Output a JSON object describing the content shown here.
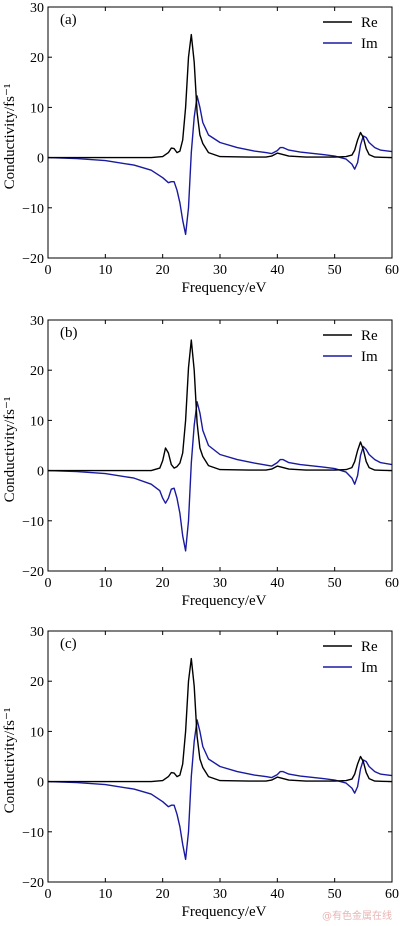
{
  "chart_data": [
    {
      "type": "line",
      "panel_label": "(a)",
      "xlabel": "Frequency/eV",
      "ylabel": "Conductivity/fs⁻¹",
      "xlim": [
        0,
        60
      ],
      "ylim": [
        -20,
        30
      ],
      "xticks": [
        0,
        10,
        20,
        30,
        40,
        50,
        60
      ],
      "yticks": [
        -20,
        -10,
        0,
        10,
        20,
        30
      ],
      "legend_position": "top-right",
      "series": [
        {
          "name": "Re",
          "color": "#000000",
          "x": [
            0,
            10,
            18,
            20,
            21,
            21.5,
            22,
            22.5,
            23,
            23.5,
            24,
            24.5,
            25,
            25.5,
            26,
            26.5,
            27,
            28,
            30,
            35,
            38,
            39,
            40,
            41,
            42,
            45,
            50,
            52,
            53,
            53.5,
            54,
            54.5,
            55,
            55.5,
            56,
            57,
            60
          ],
          "y": [
            0,
            0,
            0,
            0.2,
            1.0,
            1.9,
            1.8,
            1.0,
            1.3,
            3.5,
            10.0,
            20.0,
            24.5,
            19.0,
            9.0,
            4.5,
            2.8,
            1.0,
            0.2,
            0.1,
            0.1,
            0.3,
            0.9,
            0.6,
            0.3,
            0.1,
            0.1,
            0.2,
            0.5,
            1.5,
            3.5,
            5.0,
            4.0,
            1.8,
            0.6,
            0.1,
            0
          ]
        },
        {
          "name": "Im",
          "color": "#1a1aa0",
          "x": [
            0,
            5,
            10,
            15,
            18,
            20,
            21,
            21.5,
            22,
            22.5,
            23,
            23.5,
            24,
            24.5,
            25,
            25.5,
            26,
            26.5,
            27,
            28,
            30,
            33,
            36,
            38,
            39,
            40,
            40.5,
            41,
            42,
            44,
            48,
            50,
            52,
            53,
            53.5,
            54,
            54.5,
            55,
            55.5,
            56,
            57,
            58,
            60
          ],
          "y": [
            0,
            -0.2,
            -0.6,
            -1.5,
            -2.5,
            -4.0,
            -5.0,
            -4.8,
            -4.8,
            -6.5,
            -9.0,
            -12.5,
            -15.3,
            -10.0,
            1.0,
            8.0,
            12.3,
            10.0,
            7.0,
            4.5,
            3.0,
            2.0,
            1.3,
            1.0,
            0.8,
            1.4,
            2.0,
            2.0,
            1.5,
            1.1,
            0.6,
            0.3,
            -0.3,
            -1.3,
            -2.3,
            -1.0,
            2.5,
            4.3,
            4.0,
            3.0,
            2.0,
            1.5,
            1.2
          ]
        }
      ]
    },
    {
      "type": "line",
      "panel_label": "(b)",
      "xlabel": "Frequency/eV",
      "ylabel": "Conductivity/fs⁻¹",
      "xlim": [
        0,
        60
      ],
      "ylim": [
        -20,
        30
      ],
      "xticks": [
        0,
        10,
        20,
        30,
        40,
        50,
        60
      ],
      "yticks": [
        -20,
        -10,
        0,
        10,
        20,
        30
      ],
      "legend_position": "top-right",
      "series": [
        {
          "name": "Re",
          "color": "#000000",
          "x": [
            0,
            10,
            18,
            19.5,
            20,
            20.5,
            21,
            21.5,
            22,
            22.5,
            23,
            23.5,
            24,
            24.5,
            25,
            25.5,
            26,
            26.5,
            27,
            28,
            30,
            35,
            38,
            39,
            40,
            41,
            42,
            45,
            50,
            52,
            53,
            53.5,
            54,
            54.5,
            55,
            55.5,
            56,
            57,
            60
          ],
          "y": [
            0,
            0,
            0,
            0.5,
            2.0,
            4.5,
            3.5,
            1.2,
            0.5,
            0.8,
            1.5,
            3.5,
            10.0,
            20.5,
            26.0,
            20.0,
            9.5,
            4.5,
            2.8,
            1.0,
            0.2,
            0.1,
            0.1,
            0.3,
            0.9,
            0.6,
            0.3,
            0.1,
            0.1,
            0.2,
            0.6,
            1.8,
            4.0,
            5.7,
            4.2,
            1.8,
            0.6,
            0.1,
            0
          ]
        },
        {
          "name": "Im",
          "color": "#1a1aa0",
          "x": [
            0,
            5,
            10,
            15,
            18,
            19.5,
            20,
            20.5,
            21,
            21.5,
            22,
            22.5,
            23,
            23.5,
            24,
            24.5,
            25,
            25.5,
            26,
            26.5,
            27,
            28,
            30,
            33,
            36,
            38,
            39,
            40,
            40.5,
            41,
            42,
            44,
            48,
            50,
            52,
            53,
            53.5,
            54,
            54.5,
            55,
            55.5,
            56,
            57,
            58,
            60
          ],
          "y": [
            0,
            -0.2,
            -0.6,
            -1.5,
            -2.7,
            -4.0,
            -5.5,
            -6.5,
            -5.5,
            -3.7,
            -3.5,
            -5.5,
            -8.5,
            -13.0,
            -16.0,
            -10.0,
            1.5,
            9.0,
            13.7,
            11.5,
            8.0,
            5.0,
            3.2,
            2.2,
            1.5,
            1.1,
            0.9,
            1.6,
            2.2,
            2.2,
            1.6,
            1.2,
            0.7,
            0.4,
            -0.3,
            -1.5,
            -2.7,
            -1.0,
            3.0,
            4.8,
            4.2,
            3.2,
            2.2,
            1.6,
            1.2
          ]
        }
      ]
    },
    {
      "type": "line",
      "panel_label": "(c)",
      "xlabel": "Frequency/eV",
      "ylabel": "Conductivity/fs⁻¹",
      "xlim": [
        0,
        60
      ],
      "ylim": [
        -20,
        30
      ],
      "xticks": [
        0,
        10,
        20,
        30,
        40,
        50,
        60
      ],
      "yticks": [
        -20,
        -10,
        0,
        10,
        20,
        30
      ],
      "legend_position": "top-right",
      "series": [
        {
          "name": "Re",
          "color": "#000000",
          "x": [
            0,
            10,
            18,
            20,
            21,
            21.5,
            22,
            22.5,
            23,
            23.5,
            24,
            24.5,
            25,
            25.5,
            26,
            26.5,
            27,
            28,
            30,
            35,
            38,
            39,
            40,
            41,
            42,
            45,
            50,
            52,
            53,
            53.5,
            54,
            54.5,
            55,
            55.5,
            56,
            57,
            60
          ],
          "y": [
            0,
            0,
            0,
            0.2,
            1.0,
            1.8,
            1.7,
            1.0,
            1.3,
            3.5,
            10.0,
            20.0,
            24.5,
            19.0,
            9.0,
            4.5,
            2.8,
            1.0,
            0.2,
            0.1,
            0.1,
            0.3,
            0.9,
            0.6,
            0.3,
            0.1,
            0.1,
            0.2,
            0.5,
            1.5,
            3.5,
            5.0,
            4.0,
            1.8,
            0.6,
            0.1,
            0
          ]
        },
        {
          "name": "Im",
          "color": "#1a1aa0",
          "x": [
            0,
            5,
            10,
            15,
            18,
            20,
            21,
            21.5,
            22,
            22.5,
            23,
            23.5,
            24,
            24.5,
            25,
            25.5,
            26,
            26.5,
            27,
            28,
            30,
            33,
            36,
            38,
            39,
            40,
            40.5,
            41,
            42,
            44,
            48,
            50,
            52,
            53,
            53.5,
            54,
            54.5,
            55,
            55.5,
            56,
            57,
            58,
            60
          ],
          "y": [
            0,
            -0.2,
            -0.6,
            -1.5,
            -2.5,
            -4.0,
            -5.0,
            -4.7,
            -4.7,
            -6.5,
            -9.0,
            -12.5,
            -15.5,
            -10.0,
            1.0,
            8.0,
            12.3,
            10.0,
            7.0,
            4.5,
            3.0,
            2.0,
            1.3,
            1.0,
            0.8,
            1.4,
            2.0,
            2.0,
            1.5,
            1.1,
            0.6,
            0.3,
            -0.3,
            -1.3,
            -2.3,
            -1.0,
            2.5,
            4.3,
            4.0,
            3.0,
            2.0,
            1.5,
            1.2
          ]
        }
      ]
    }
  ],
  "watermark": "@有色金属在线"
}
